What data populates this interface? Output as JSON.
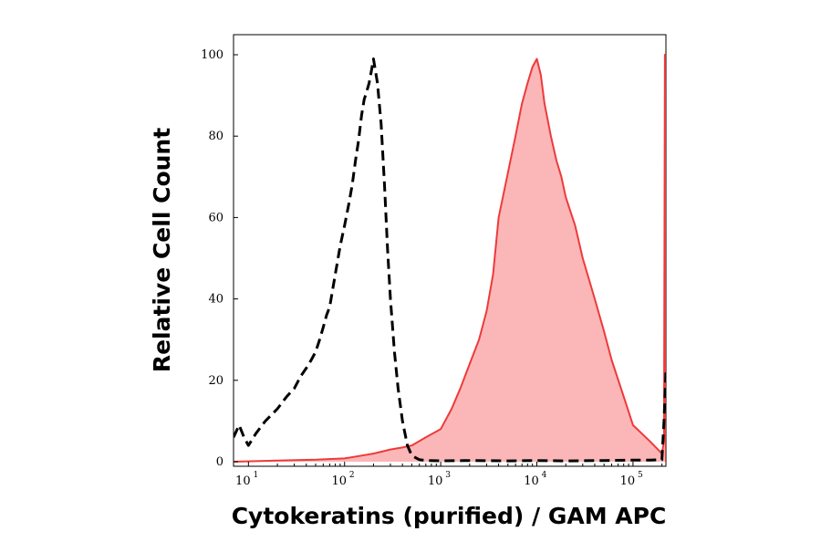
{
  "chart_data": {
    "type": "area",
    "title": "",
    "xlabel": "Cytokeratins (purified) / GAM APC",
    "ylabel": "Relative Cell Count",
    "xscale": "log",
    "xlim": [
      7,
      220000
    ],
    "ylim": [
      0,
      100
    ],
    "grid": false,
    "legend": "none",
    "x_ticks": [
      {
        "base": "10",
        "exp": "1",
        "value": 10
      },
      {
        "base": "10",
        "exp": "2",
        "value": 100
      },
      {
        "base": "10",
        "exp": "3",
        "value": 1000
      },
      {
        "base": "10",
        "exp": "4",
        "value": 10000
      },
      {
        "base": "10",
        "exp": "5",
        "value": 100000
      }
    ],
    "y_ticks": [
      "0",
      "20",
      "40",
      "60",
      "80",
      "100"
    ],
    "series": [
      {
        "style": "dashed",
        "color": "#000000",
        "x": [
          7,
          8,
          9,
          10,
          12,
          15,
          20,
          25,
          30,
          35,
          40,
          45,
          50,
          55,
          60,
          65,
          70,
          80,
          90,
          100,
          110,
          120,
          130,
          140,
          150,
          160,
          170,
          180,
          190,
          200,
          220,
          240,
          260,
          280,
          300,
          330,
          360,
          400,
          450,
          500,
          600,
          700,
          1000,
          2000,
          5000,
          10000,
          20000,
          50000,
          100000,
          150000,
          200000,
          210000,
          220000
        ],
        "y": [
          6,
          9,
          6,
          4,
          7,
          10,
          13,
          16,
          18,
          21,
          23,
          25,
          27,
          30,
          33,
          36,
          38,
          46,
          53,
          58,
          63,
          68,
          74,
          79,
          85,
          89,
          91,
          93,
          96,
          99,
          93,
          83,
          68,
          52,
          40,
          27,
          18,
          10,
          4,
          1.5,
          0.5,
          0.3,
          0.2,
          0.3,
          0.2,
          0.3,
          0.2,
          0.3,
          0.4,
          0.4,
          0.5,
          10,
          22
        ]
      },
      {
        "style": "filled",
        "color": "#ee3a3a",
        "fill": "#fbb7b7",
        "x": [
          7,
          20,
          50,
          100,
          150,
          200,
          300,
          400,
          500,
          700,
          1000,
          1300,
          1600,
          2000,
          2500,
          3000,
          3500,
          4000,
          5000,
          6000,
          7000,
          8000,
          9000,
          10000,
          11000,
          12000,
          14000,
          16000,
          18000,
          20000,
          25000,
          30000,
          40000,
          50000,
          60000,
          80000,
          100000,
          150000,
          200000,
          210000,
          215000,
          220000
        ],
        "y": [
          0,
          0.3,
          0.5,
          0.8,
          1.5,
          2,
          3,
          3.5,
          4,
          6,
          8,
          13,
          18,
          24,
          30,
          37,
          46,
          60,
          71,
          80,
          88,
          93,
          97,
          99,
          95,
          88,
          80,
          74,
          70,
          65,
          58,
          50,
          40,
          32,
          25,
          16,
          9,
          5,
          2,
          5,
          100,
          0
        ]
      }
    ]
  }
}
